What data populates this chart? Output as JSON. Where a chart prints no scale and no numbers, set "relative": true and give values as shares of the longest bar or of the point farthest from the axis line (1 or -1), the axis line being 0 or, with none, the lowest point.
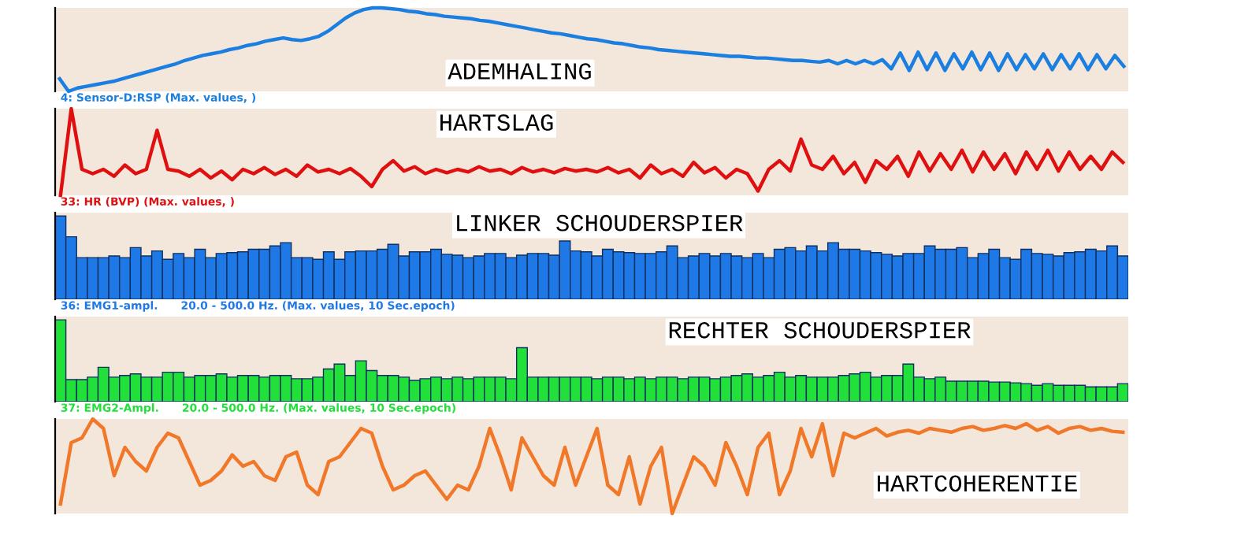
{
  "chart_data": [
    {
      "type": "line",
      "title": "ADEMHALING",
      "relative": true,
      "annotations": [
        "4: Sensor-D:RSP (Max. values, )"
      ],
      "categories": [
        null,
        null,
        null,
        null,
        null,
        null,
        null,
        null,
        null,
        null,
        null,
        null,
        null,
        null,
        null,
        null,
        null,
        null,
        null,
        null,
        null,
        null,
        null,
        null,
        null,
        null,
        null,
        null,
        null,
        null,
        null,
        null,
        null,
        null,
        null,
        null,
        null,
        null,
        null,
        null,
        null,
        null,
        null,
        null,
        null,
        null,
        null,
        null,
        null,
        null,
        null,
        null,
        null,
        null,
        null,
        null,
        null,
        null,
        null,
        null,
        null,
        null,
        null,
        null,
        null,
        null,
        null,
        null,
        null,
        null,
        null,
        null,
        null,
        null,
        null,
        null,
        null,
        null,
        null,
        null,
        null,
        null,
        null,
        null,
        null,
        null,
        null,
        null,
        null,
        null,
        null,
        null,
        null,
        null,
        null,
        null,
        null,
        null,
        null,
        null,
        null,
        null,
        null,
        null,
        null,
        null,
        null,
        null,
        null,
        null,
        null,
        null,
        null,
        null,
        null,
        null,
        null,
        null,
        null,
        null
      ],
      "series": [
        {
          "color": "#1a7fe0",
          "values": [
            0.15,
            0.0,
            0.04,
            0.06,
            0.08,
            0.1,
            0.12,
            0.15,
            0.18,
            0.21,
            0.24,
            0.27,
            0.3,
            0.33,
            0.37,
            0.4,
            0.43,
            0.45,
            0.47,
            0.5,
            0.52,
            0.55,
            0.57,
            0.6,
            0.62,
            0.64,
            0.62,
            0.61,
            0.63,
            0.66,
            0.72,
            0.8,
            0.88,
            0.94,
            0.98,
            1.0,
            1.0,
            0.99,
            0.98,
            0.96,
            0.95,
            0.93,
            0.92,
            0.9,
            0.89,
            0.88,
            0.87,
            0.85,
            0.84,
            0.82,
            0.8,
            0.78,
            0.76,
            0.74,
            0.72,
            0.7,
            0.69,
            0.67,
            0.65,
            0.63,
            0.62,
            0.6,
            0.58,
            0.57,
            0.55,
            0.53,
            0.52,
            0.5,
            0.49,
            0.48,
            0.47,
            0.46,
            0.45,
            0.44,
            0.43,
            0.42,
            0.42,
            0.41,
            0.4,
            0.4,
            0.39,
            0.38,
            0.37,
            0.37,
            0.36,
            0.35,
            0.37,
            0.33,
            0.37,
            0.33,
            0.37,
            0.33,
            0.38,
            0.27,
            0.46,
            0.25,
            0.47,
            0.26,
            0.46,
            0.25,
            0.45,
            0.27,
            0.47,
            0.26,
            0.46,
            0.25,
            0.45,
            0.26,
            0.44,
            0.27,
            0.45,
            0.26,
            0.44,
            0.27,
            0.45,
            0.26,
            0.44,
            0.27,
            0.43,
            0.3
          ]
        }
      ]
    },
    {
      "type": "line",
      "title": "HARTSLAG",
      "relative": true,
      "annotations": [
        "33: HR (BVP) (Max. values, )"
      ],
      "categories": [
        null,
        null,
        null,
        null,
        null,
        null,
        null,
        null,
        null,
        null,
        null,
        null,
        null,
        null,
        null,
        null,
        null,
        null,
        null,
        null,
        null,
        null,
        null,
        null,
        null,
        null,
        null,
        null,
        null,
        null,
        null,
        null,
        null,
        null,
        null,
        null,
        null,
        null,
        null,
        null,
        null,
        null,
        null,
        null,
        null,
        null,
        null,
        null,
        null,
        null,
        null,
        null,
        null,
        null,
        null,
        null,
        null,
        null,
        null,
        null,
        null,
        null,
        null,
        null,
        null,
        null,
        null,
        null,
        null,
        null,
        null,
        null,
        null,
        null,
        null,
        null,
        null,
        null,
        null,
        null,
        null,
        null,
        null,
        null,
        null,
        null,
        null,
        null,
        null,
        null,
        null,
        null,
        null,
        null,
        null,
        null,
        null,
        null,
        null,
        null
      ],
      "series": [
        {
          "color": "#e01010",
          "values": [
            0.0,
            1.0,
            0.3,
            0.25,
            0.3,
            0.22,
            0.35,
            0.25,
            0.3,
            0.75,
            0.3,
            0.28,
            0.22,
            0.3,
            0.2,
            0.28,
            0.18,
            0.3,
            0.25,
            0.32,
            0.24,
            0.3,
            0.22,
            0.35,
            0.27,
            0.3,
            0.25,
            0.31,
            0.22,
            0.1,
            0.3,
            0.4,
            0.28,
            0.33,
            0.25,
            0.3,
            0.26,
            0.3,
            0.27,
            0.33,
            0.28,
            0.3,
            0.25,
            0.32,
            0.27,
            0.3,
            0.26,
            0.31,
            0.28,
            0.3,
            0.27,
            0.32,
            0.26,
            0.3,
            0.2,
            0.35,
            0.25,
            0.3,
            0.22,
            0.38,
            0.26,
            0.32,
            0.2,
            0.3,
            0.25,
            0.05,
            0.3,
            0.4,
            0.28,
            0.65,
            0.35,
            0.3,
            0.45,
            0.25,
            0.38,
            0.15,
            0.4,
            0.3,
            0.45,
            0.22,
            0.5,
            0.28,
            0.48,
            0.3,
            0.52,
            0.27,
            0.5,
            0.3,
            0.48,
            0.25,
            0.5,
            0.3,
            0.52,
            0.28,
            0.5,
            0.3,
            0.45,
            0.3,
            0.5,
            0.38
          ]
        }
      ]
    },
    {
      "type": "bar",
      "title": "LINKER SCHOUDERSPIER",
      "relative": true,
      "annotations": [
        "36: EMG1-ampl.      20.0 - 500.0 Hz. (Max. values, 10 Sec.epoch)"
      ],
      "categories": [
        null,
        null,
        null,
        null,
        null,
        null,
        null,
        null,
        null,
        null,
        null,
        null,
        null,
        null,
        null,
        null,
        null,
        null,
        null,
        null,
        null,
        null,
        null,
        null,
        null,
        null,
        null,
        null,
        null,
        null,
        null,
        null,
        null,
        null,
        null,
        null,
        null,
        null,
        null,
        null,
        null,
        null,
        null,
        null,
        null,
        null,
        null,
        null,
        null,
        null,
        null,
        null,
        null,
        null,
        null,
        null,
        null,
        null,
        null,
        null,
        null,
        null,
        null,
        null,
        null,
        null,
        null,
        null,
        null,
        null,
        null,
        null,
        null,
        null,
        null,
        null,
        null,
        null,
        null,
        null,
        null,
        null,
        null,
        null,
        null,
        null,
        null,
        null,
        null,
        null,
        null,
        null,
        null,
        null,
        null,
        null,
        null,
        null,
        null,
        null
      ],
      "series": [
        {
          "color": "#1e78e6",
          "values": [
            1.0,
            0.75,
            0.5,
            0.5,
            0.5,
            0.52,
            0.5,
            0.62,
            0.52,
            0.58,
            0.48,
            0.55,
            0.5,
            0.6,
            0.5,
            0.55,
            0.56,
            0.57,
            0.6,
            0.6,
            0.64,
            0.68,
            0.5,
            0.5,
            0.48,
            0.57,
            0.48,
            0.57,
            0.58,
            0.58,
            0.6,
            0.66,
            0.52,
            0.57,
            0.57,
            0.6,
            0.54,
            0.53,
            0.5,
            0.52,
            0.55,
            0.55,
            0.5,
            0.53,
            0.55,
            0.55,
            0.53,
            0.7,
            0.58,
            0.57,
            0.52,
            0.6,
            0.57,
            0.56,
            0.55,
            0.55,
            0.57,
            0.64,
            0.5,
            0.52,
            0.55,
            0.52,
            0.55,
            0.52,
            0.5,
            0.55,
            0.5,
            0.6,
            0.62,
            0.58,
            0.64,
            0.58,
            0.68,
            0.6,
            0.6,
            0.58,
            0.56,
            0.54,
            0.52,
            0.55,
            0.55,
            0.64,
            0.6,
            0.6,
            0.62,
            0.5,
            0.55,
            0.6,
            0.5,
            0.48,
            0.6,
            0.55,
            0.54,
            0.52,
            0.56,
            0.57,
            0.6,
            0.58,
            0.64,
            0.52
          ]
        }
      ]
    },
    {
      "type": "bar",
      "title": "RECHTER SCHOUDERSPIER",
      "relative": true,
      "annotations": [
        "37: EMG2-Ampl.      20.0 - 500.0 Hz. (Max. values, 10 Sec.epoch)"
      ],
      "categories": [
        null,
        null,
        null,
        null,
        null,
        null,
        null,
        null,
        null,
        null,
        null,
        null,
        null,
        null,
        null,
        null,
        null,
        null,
        null,
        null,
        null,
        null,
        null,
        null,
        null,
        null,
        null,
        null,
        null,
        null,
        null,
        null,
        null,
        null,
        null,
        null,
        null,
        null,
        null,
        null,
        null,
        null,
        null,
        null,
        null,
        null,
        null,
        null,
        null,
        null,
        null,
        null,
        null,
        null,
        null,
        null,
        null,
        null,
        null,
        null,
        null,
        null,
        null,
        null,
        null,
        null,
        null,
        null,
        null,
        null,
        null,
        null,
        null,
        null,
        null,
        null,
        null,
        null,
        null,
        null,
        null,
        null,
        null,
        null,
        null,
        null,
        null,
        null,
        null,
        null,
        null,
        null,
        null,
        null,
        null,
        null,
        null,
        null,
        null,
        null
      ],
      "series": [
        {
          "color": "#22e03a",
          "values": [
            1.0,
            0.27,
            0.27,
            0.3,
            0.42,
            0.3,
            0.32,
            0.34,
            0.3,
            0.3,
            0.36,
            0.36,
            0.3,
            0.32,
            0.32,
            0.34,
            0.3,
            0.32,
            0.32,
            0.3,
            0.32,
            0.32,
            0.28,
            0.28,
            0.3,
            0.4,
            0.46,
            0.32,
            0.5,
            0.38,
            0.32,
            0.32,
            0.3,
            0.26,
            0.28,
            0.3,
            0.28,
            0.3,
            0.28,
            0.3,
            0.3,
            0.3,
            0.28,
            0.66,
            0.3,
            0.3,
            0.3,
            0.3,
            0.3,
            0.3,
            0.28,
            0.3,
            0.3,
            0.28,
            0.3,
            0.28,
            0.3,
            0.3,
            0.28,
            0.3,
            0.3,
            0.28,
            0.3,
            0.32,
            0.34,
            0.3,
            0.32,
            0.36,
            0.3,
            0.32,
            0.3,
            0.3,
            0.3,
            0.32,
            0.34,
            0.36,
            0.3,
            0.32,
            0.32,
            0.46,
            0.3,
            0.28,
            0.3,
            0.25,
            0.25,
            0.25,
            0.25,
            0.24,
            0.24,
            0.23,
            0.22,
            0.2,
            0.22,
            0.2,
            0.2,
            0.2,
            0.18,
            0.18,
            0.18,
            0.22
          ]
        }
      ]
    },
    {
      "type": "line",
      "title": "HARTCOHERENTIE",
      "relative": true,
      "categories": [
        null,
        null,
        null,
        null,
        null,
        null,
        null,
        null,
        null,
        null,
        null,
        null,
        null,
        null,
        null,
        null,
        null,
        null,
        null,
        null,
        null,
        null,
        null,
        null,
        null,
        null,
        null,
        null,
        null,
        null,
        null,
        null,
        null,
        null,
        null,
        null,
        null,
        null,
        null,
        null,
        null,
        null,
        null,
        null,
        null,
        null,
        null,
        null,
        null,
        null,
        null,
        null,
        null,
        null,
        null,
        null,
        null,
        null,
        null,
        null,
        null,
        null,
        null,
        null,
        null,
        null,
        null,
        null,
        null,
        null,
        null,
        null,
        null,
        null,
        null,
        null,
        null,
        null,
        null,
        null,
        null,
        null,
        null,
        null,
        null,
        null,
        null,
        null,
        null,
        null,
        null,
        null,
        null,
        null,
        null,
        null,
        null,
        null,
        null,
        null
      ],
      "series": [
        {
          "color": "#f07828",
          "values": [
            0.1,
            0.75,
            0.8,
            1.0,
            0.9,
            0.4,
            0.7,
            0.55,
            0.45,
            0.7,
            0.85,
            0.8,
            0.55,
            0.3,
            0.35,
            0.45,
            0.62,
            0.5,
            0.55,
            0.4,
            0.35,
            0.6,
            0.65,
            0.3,
            0.2,
            0.55,
            0.6,
            0.75,
            0.9,
            0.85,
            0.5,
            0.25,
            0.3,
            0.4,
            0.45,
            0.3,
            0.15,
            0.3,
            0.25,
            0.5,
            0.9,
            0.6,
            0.25,
            0.8,
            0.6,
            0.4,
            0.3,
            0.7,
            0.3,
            0.6,
            0.9,
            0.3,
            0.2,
            0.6,
            0.1,
            0.5,
            0.7,
            0.0,
            0.3,
            0.6,
            0.5,
            0.3,
            0.75,
            0.5,
            0.2,
            0.7,
            0.85,
            0.2,
            0.45,
            0.9,
            0.6,
            0.95,
            0.4,
            0.85,
            0.8,
            0.85,
            0.9,
            0.82,
            0.86,
            0.88,
            0.85,
            0.9,
            0.88,
            0.86,
            0.9,
            0.92,
            0.88,
            0.9,
            0.93,
            0.9,
            0.95,
            0.88,
            0.92,
            0.85,
            0.9,
            0.92,
            0.88,
            0.9,
            0.87,
            0.86
          ]
        }
      ]
    }
  ]
}
